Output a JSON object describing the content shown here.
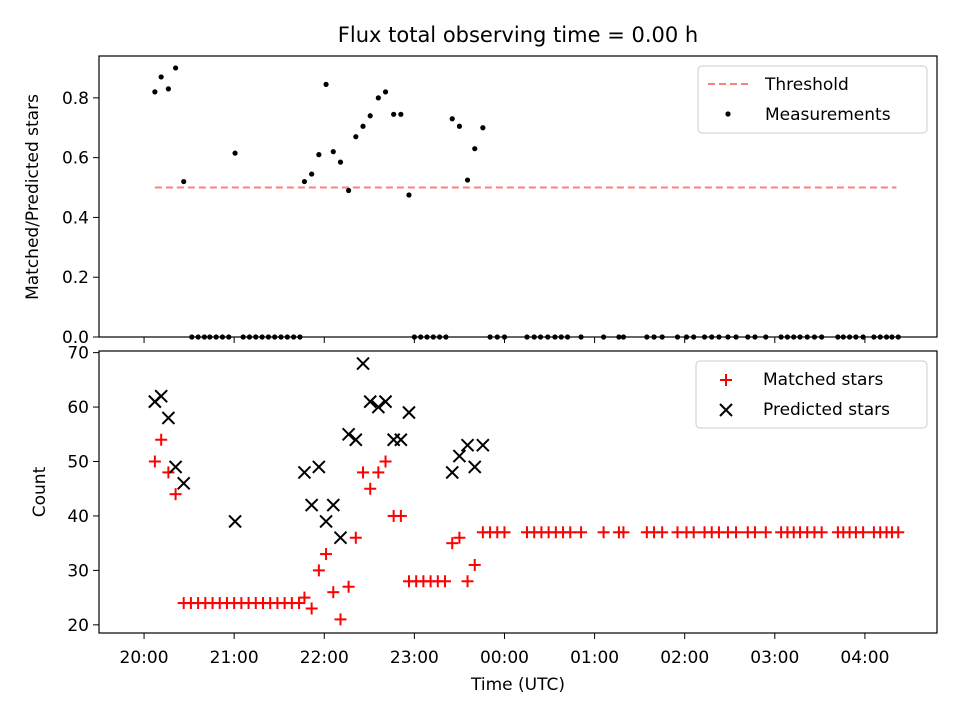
{
  "chart_data": [
    {
      "type": "scatter",
      "title": "Flux total observing time = 0.00 h",
      "xlabel": "",
      "ylabel": "Matched/Predicted stars",
      "xlim": [
        -0.5,
        8.8
      ],
      "ylim": [
        0,
        0.94
      ],
      "yticks": [
        0.0,
        0.2,
        0.4,
        0.6,
        0.8
      ],
      "ytick_labels": [
        "0.0",
        "0.2",
        "0.4",
        "0.6",
        "0.8"
      ],
      "legend": {
        "position": "top-right",
        "entries": [
          "Threshold",
          "Measurements"
        ]
      },
      "threshold": {
        "name": "Threshold",
        "value": 0.5,
        "x_range": [
          0.12,
          8.35
        ],
        "color": "#ff7f7f"
      },
      "series": [
        {
          "name": "Measurements",
          "marker": "dot",
          "color": "#000000",
          "points": [
            [
              0.12,
              0.82
            ],
            [
              0.19,
              0.87
            ],
            [
              0.27,
              0.83
            ],
            [
              0.35,
              0.9
            ],
            [
              0.44,
              0.52
            ],
            [
              0.53,
              0
            ],
            [
              0.6,
              0
            ],
            [
              0.67,
              0
            ],
            [
              0.73,
              0
            ],
            [
              0.8,
              0
            ],
            [
              0.87,
              0
            ],
            [
              0.94,
              0
            ],
            [
              1.01,
              0.615
            ],
            [
              1.1,
              0
            ],
            [
              1.17,
              0
            ],
            [
              1.24,
              0
            ],
            [
              1.31,
              0
            ],
            [
              1.38,
              0
            ],
            [
              1.45,
              0
            ],
            [
              1.52,
              0
            ],
            [
              1.59,
              0
            ],
            [
              1.66,
              0
            ],
            [
              1.73,
              0
            ],
            [
              1.78,
              0.52
            ],
            [
              1.86,
              0.545
            ],
            [
              1.94,
              0.61
            ],
            [
              2.02,
              0.845
            ],
            [
              2.1,
              0.62
            ],
            [
              2.18,
              0.585
            ],
            [
              2.27,
              0.49
            ],
            [
              2.35,
              0.67
            ],
            [
              2.43,
              0.705
            ],
            [
              2.51,
              0.74
            ],
            [
              2.6,
              0.8
            ],
            [
              2.68,
              0.82
            ],
            [
              2.77,
              0.745
            ],
            [
              2.85,
              0.745
            ],
            [
              2.94,
              0.475
            ],
            [
              3.0,
              0
            ],
            [
              3.07,
              0
            ],
            [
              3.14,
              0
            ],
            [
              3.21,
              0
            ],
            [
              3.28,
              0
            ],
            [
              3.35,
              0
            ],
            [
              3.42,
              0.73
            ],
            [
              3.5,
              0.705
            ],
            [
              3.59,
              0.525
            ],
            [
              3.67,
              0.63
            ],
            [
              3.76,
              0.7
            ],
            [
              3.84,
              0
            ],
            [
              3.92,
              0
            ],
            [
              4.0,
              0
            ],
            [
              4.25,
              0
            ],
            [
              4.33,
              0
            ],
            [
              4.4,
              0
            ],
            [
              4.48,
              0
            ],
            [
              4.56,
              0
            ],
            [
              4.63,
              0
            ],
            [
              4.7,
              0
            ],
            [
              4.85,
              0
            ],
            [
              5.1,
              0
            ],
            [
              5.27,
              0
            ],
            [
              5.32,
              0
            ],
            [
              5.58,
              0
            ],
            [
              5.66,
              0
            ],
            [
              5.75,
              0
            ],
            [
              5.92,
              0
            ],
            [
              6.02,
              0
            ],
            [
              6.1,
              0
            ],
            [
              6.22,
              0
            ],
            [
              6.3,
              0
            ],
            [
              6.38,
              0
            ],
            [
              6.48,
              0
            ],
            [
              6.57,
              0
            ],
            [
              6.7,
              0
            ],
            [
              6.78,
              0
            ],
            [
              6.9,
              0
            ],
            [
              7.07,
              0
            ],
            [
              7.14,
              0
            ],
            [
              7.21,
              0
            ],
            [
              7.28,
              0
            ],
            [
              7.36,
              0
            ],
            [
              7.44,
              0
            ],
            [
              7.52,
              0
            ],
            [
              7.7,
              0
            ],
            [
              7.76,
              0
            ],
            [
              7.83,
              0
            ],
            [
              7.9,
              0
            ],
            [
              7.98,
              0
            ],
            [
              8.1,
              0
            ],
            [
              8.17,
              0
            ],
            [
              8.24,
              0
            ],
            [
              8.3,
              0
            ],
            [
              8.37,
              0
            ]
          ]
        }
      ]
    },
    {
      "type": "scatter",
      "title": "",
      "xlabel": "Time (UTC)",
      "ylabel": "Count",
      "xlim": [
        -0.5,
        8.8
      ],
      "ylim": [
        18.5,
        70.3
      ],
      "yticks": [
        20,
        30,
        40,
        50,
        60,
        70
      ],
      "ytick_labels": [
        "20",
        "30",
        "40",
        "50",
        "60",
        "70"
      ],
      "xticks": [
        0,
        1,
        2,
        3,
        4,
        5,
        6,
        7,
        8
      ],
      "xtick_labels": [
        "20:00",
        "21:00",
        "22:00",
        "23:00",
        "00:00",
        "01:00",
        "02:00",
        "03:00",
        "04:00"
      ],
      "legend": {
        "position": "top-right",
        "entries": [
          "Matched stars",
          "Predicted stars"
        ]
      },
      "series": [
        {
          "name": "Matched stars",
          "marker": "plus",
          "color": "#ff0000",
          "points": [
            [
              0.12,
              50
            ],
            [
              0.19,
              54
            ],
            [
              0.27,
              48
            ],
            [
              0.35,
              44
            ],
            [
              0.44,
              24
            ],
            [
              0.52,
              24
            ],
            [
              0.6,
              24
            ],
            [
              0.68,
              24
            ],
            [
              0.76,
              24
            ],
            [
              0.84,
              24
            ],
            [
              0.92,
              24
            ],
            [
              1.0,
              24
            ],
            [
              1.08,
              24
            ],
            [
              1.16,
              24
            ],
            [
              1.24,
              24
            ],
            [
              1.32,
              24
            ],
            [
              1.4,
              24
            ],
            [
              1.48,
              24
            ],
            [
              1.56,
              24
            ],
            [
              1.64,
              24
            ],
            [
              1.72,
              24
            ],
            [
              1.78,
              25
            ],
            [
              1.86,
              23
            ],
            [
              1.94,
              30
            ],
            [
              2.02,
              33
            ],
            [
              2.1,
              26
            ],
            [
              2.18,
              21
            ],
            [
              2.27,
              27
            ],
            [
              2.35,
              36
            ],
            [
              2.43,
              48
            ],
            [
              2.51,
              45
            ],
            [
              2.6,
              48
            ],
            [
              2.68,
              50
            ],
            [
              2.77,
              40
            ],
            [
              2.85,
              40
            ],
            [
              2.94,
              28
            ],
            [
              3.02,
              28
            ],
            [
              3.1,
              28
            ],
            [
              3.18,
              28
            ],
            [
              3.26,
              28
            ],
            [
              3.34,
              28
            ],
            [
              3.42,
              35
            ],
            [
              3.5,
              36
            ],
            [
              3.59,
              28
            ],
            [
              3.67,
              31
            ],
            [
              3.76,
              37
            ],
            [
              3.84,
              37
            ],
            [
              3.92,
              37
            ],
            [
              4.0,
              37
            ],
            [
              4.25,
              37
            ],
            [
              4.33,
              37
            ],
            [
              4.41,
              37
            ],
            [
              4.49,
              37
            ],
            [
              4.57,
              37
            ],
            [
              4.65,
              37
            ],
            [
              4.73,
              37
            ],
            [
              4.85,
              37
            ],
            [
              5.1,
              37
            ],
            [
              5.27,
              37
            ],
            [
              5.32,
              37
            ],
            [
              5.58,
              37
            ],
            [
              5.66,
              37
            ],
            [
              5.75,
              37
            ],
            [
              5.92,
              37
            ],
            [
              6.02,
              37
            ],
            [
              6.1,
              37
            ],
            [
              6.22,
              37
            ],
            [
              6.3,
              37
            ],
            [
              6.38,
              37
            ],
            [
              6.48,
              37
            ],
            [
              6.57,
              37
            ],
            [
              6.7,
              37
            ],
            [
              6.78,
              37
            ],
            [
              6.9,
              37
            ],
            [
              7.07,
              37
            ],
            [
              7.14,
              37
            ],
            [
              7.21,
              37
            ],
            [
              7.28,
              37
            ],
            [
              7.36,
              37
            ],
            [
              7.44,
              37
            ],
            [
              7.52,
              37
            ],
            [
              7.7,
              37
            ],
            [
              7.76,
              37
            ],
            [
              7.83,
              37
            ],
            [
              7.9,
              37
            ],
            [
              7.98,
              37
            ],
            [
              8.1,
              37
            ],
            [
              8.17,
              37
            ],
            [
              8.24,
              37
            ],
            [
              8.3,
              37
            ],
            [
              8.37,
              37
            ]
          ]
        },
        {
          "name": "Predicted stars",
          "marker": "x",
          "color": "#000000",
          "points": [
            [
              0.12,
              61
            ],
            [
              0.19,
              62
            ],
            [
              0.27,
              58
            ],
            [
              0.35,
              49
            ],
            [
              0.44,
              46
            ],
            [
              1.01,
              39
            ],
            [
              1.78,
              48
            ],
            [
              1.86,
              42
            ],
            [
              1.94,
              49
            ],
            [
              2.02,
              39
            ],
            [
              2.1,
              42
            ],
            [
              2.18,
              36
            ],
            [
              2.27,
              55
            ],
            [
              2.35,
              54
            ],
            [
              2.43,
              68
            ],
            [
              2.51,
              61
            ],
            [
              2.6,
              60
            ],
            [
              2.68,
              61
            ],
            [
              2.77,
              54
            ],
            [
              2.85,
              54
            ],
            [
              2.94,
              59
            ],
            [
              3.42,
              48
            ],
            [
              3.5,
              51
            ],
            [
              3.59,
              53
            ],
            [
              3.67,
              49
            ],
            [
              3.76,
              53
            ]
          ]
        }
      ]
    }
  ]
}
